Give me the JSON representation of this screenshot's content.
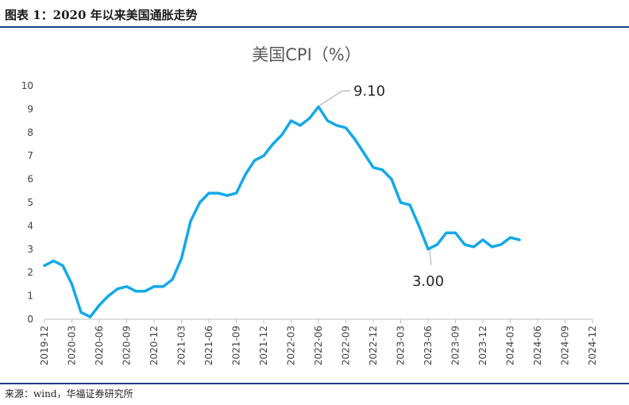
{
  "header": {
    "title": "图表 1：2020 年以来美国通胀走势"
  },
  "footer": {
    "source": "来源：wind，华福证券研究所"
  },
  "colors": {
    "line": "#12A9E8",
    "rule": "#1f3f8a",
    "axis": "#bfbfbf"
  },
  "chart_data": {
    "type": "line",
    "title": "美国CPI（%）",
    "xlabel": "",
    "ylabel": "",
    "ylim": [
      0,
      10
    ],
    "yticks": [
      0,
      1,
      2,
      3,
      4,
      5,
      6,
      7,
      8,
      9,
      10
    ],
    "x_tick_labels": [
      "2019-12",
      "2020-03",
      "2020-06",
      "2020-09",
      "2020-12",
      "2021-03",
      "2021-06",
      "2021-09",
      "2021-12",
      "2022-03",
      "2022-06",
      "2022-09",
      "2022-12",
      "2023-03",
      "2023-06",
      "2023-09",
      "2023-12",
      "2024-03",
      "2024-06",
      "2024-09",
      "2024-12"
    ],
    "x_range": [
      "2019-12",
      "2024-12"
    ],
    "grid": false,
    "legend": "none",
    "series": [
      {
        "x": [
          "2019-12",
          "2020-01",
          "2020-02",
          "2020-03",
          "2020-04",
          "2020-05",
          "2020-06",
          "2020-07",
          "2020-08",
          "2020-09",
          "2020-10",
          "2020-11",
          "2020-12",
          "2021-01",
          "2021-02",
          "2021-03",
          "2021-04",
          "2021-05",
          "2021-06",
          "2021-07",
          "2021-08",
          "2021-09",
          "2021-10",
          "2021-11",
          "2021-12",
          "2022-01",
          "2022-02",
          "2022-03",
          "2022-04",
          "2022-05",
          "2022-06",
          "2022-07",
          "2022-08",
          "2022-09",
          "2022-10",
          "2022-11",
          "2022-12",
          "2023-01",
          "2023-02",
          "2023-03",
          "2023-04",
          "2023-05",
          "2023-06",
          "2023-07",
          "2023-08",
          "2023-09",
          "2023-10",
          "2023-11",
          "2023-12",
          "2024-01",
          "2024-02",
          "2024-03",
          "2024-04"
        ],
        "values": [
          2.3,
          2.5,
          2.3,
          1.5,
          0.3,
          0.1,
          0.6,
          1.0,
          1.3,
          1.4,
          1.2,
          1.2,
          1.4,
          1.4,
          1.7,
          2.6,
          4.2,
          5.0,
          5.4,
          5.4,
          5.3,
          5.4,
          6.2,
          6.8,
          7.0,
          7.5,
          7.9,
          8.5,
          8.3,
          8.6,
          9.1,
          8.5,
          8.3,
          8.2,
          7.7,
          7.1,
          6.5,
          6.4,
          6.0,
          5.0,
          4.9,
          4.0,
          3.0,
          3.2,
          3.7,
          3.7,
          3.2,
          3.1,
          3.4,
          3.1,
          3.2,
          3.5,
          3.4
        ]
      }
    ],
    "annotations": [
      {
        "x": "2022-06",
        "y": 9.1,
        "text": "9.10"
      },
      {
        "x": "2023-06",
        "y": 3.0,
        "text": "3.00"
      }
    ]
  }
}
